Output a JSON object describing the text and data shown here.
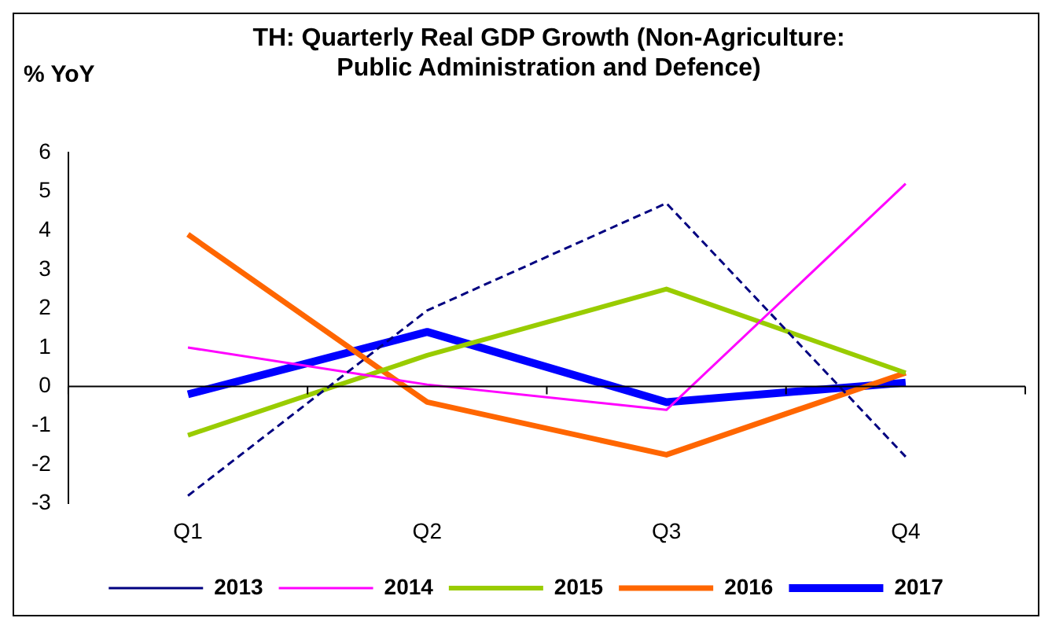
{
  "chart_data": {
    "type": "line",
    "title": "TH: Quarterly Real GDP Growth (Non-Agriculture: Public Administration and Defence)",
    "ylabel": "% YoY",
    "categories": [
      "Q1",
      "Q2",
      "Q3",
      "Q4"
    ],
    "series": [
      {
        "name": "2013",
        "color": "#000080",
        "line_style": "dashed",
        "values": [
          -2.8,
          1.95,
          4.7,
          -1.8
        ]
      },
      {
        "name": "2014",
        "color": "#ff00ff",
        "values": [
          1.0,
          0.05,
          -0.6,
          5.2
        ]
      },
      {
        "name": "2015",
        "color": "#99cc00",
        "values": [
          -1.25,
          0.8,
          2.5,
          0.35
        ]
      },
      {
        "name": "2016",
        "color": "#ff6600",
        "values": [
          3.9,
          -0.4,
          -1.75,
          0.35
        ]
      },
      {
        "name": "2017",
        "color": "#0000ff",
        "values": [
          -0.2,
          1.4,
          -0.4,
          0.1
        ]
      }
    ],
    "ylim": [
      -3,
      6
    ],
    "yticks": [
      -3,
      -2,
      -1,
      0,
      1,
      2,
      3,
      4,
      5,
      6
    ],
    "ref_lines": [
      {
        "axis": "y",
        "value": 0,
        "color": "#000000"
      }
    ],
    "grid": false,
    "legend": "bottom",
    "marker": "none",
    "line_style": "solid"
  }
}
